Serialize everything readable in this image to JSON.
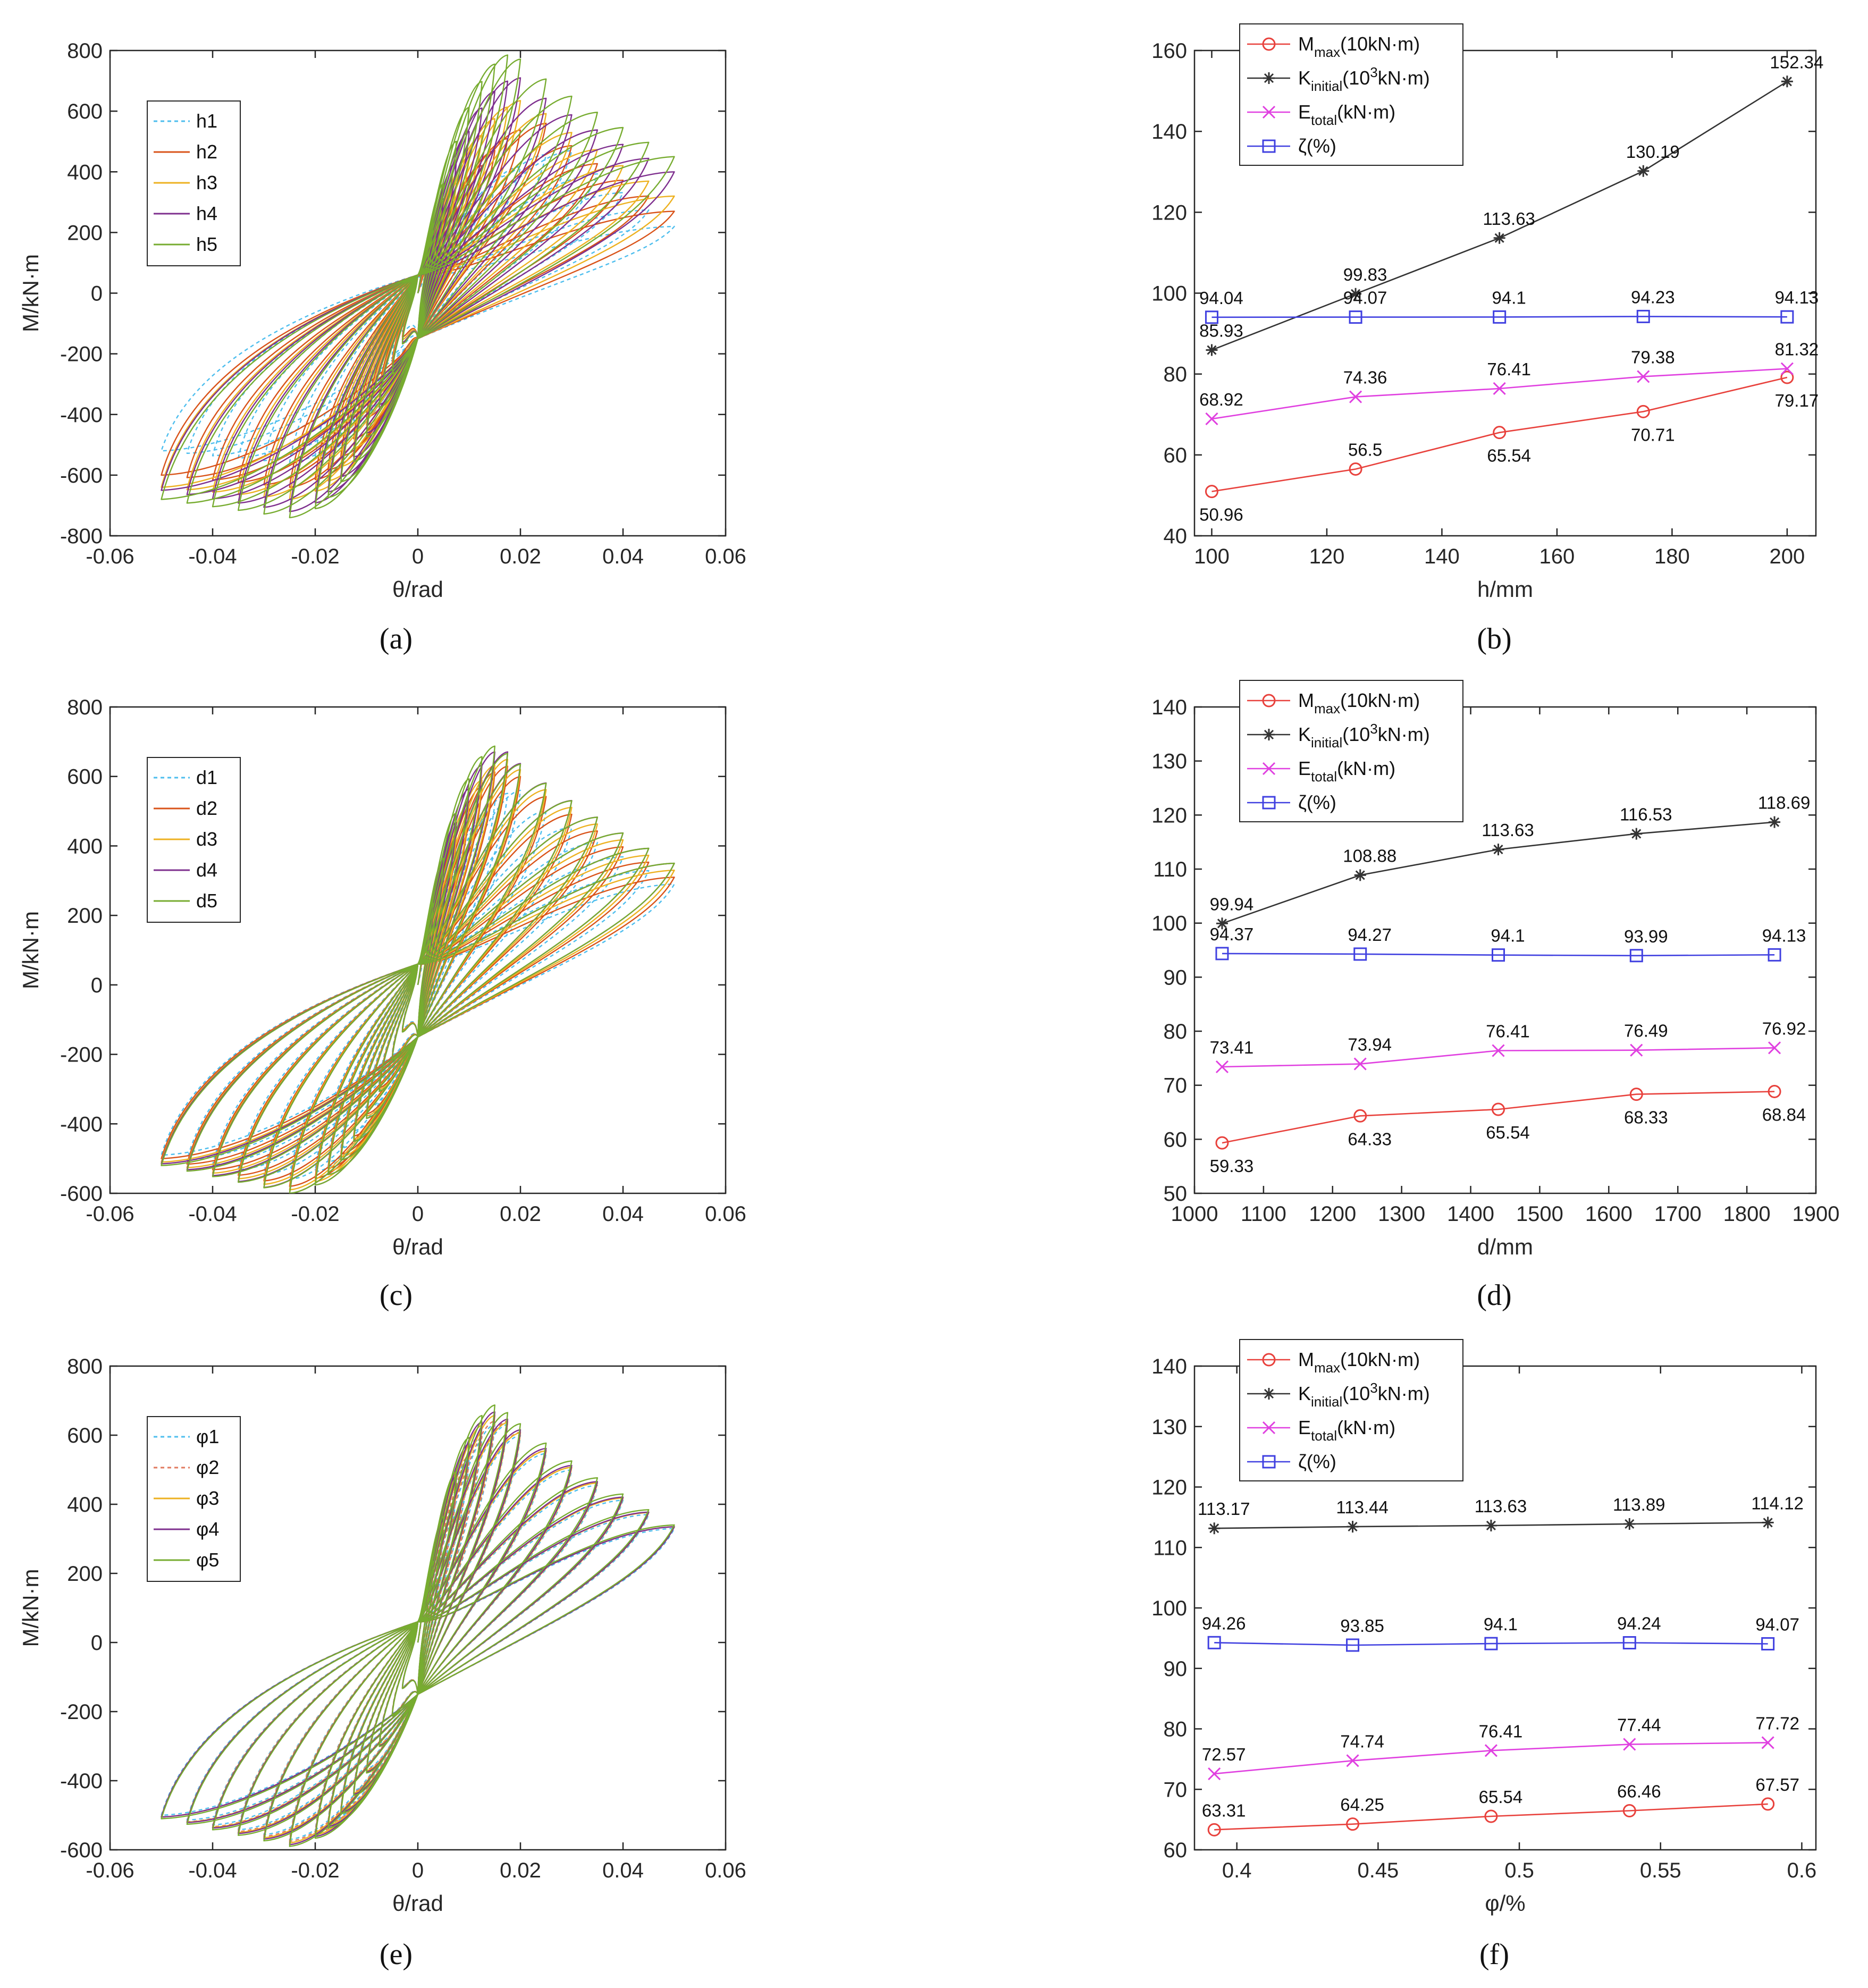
{
  "chart_data": [
    {
      "id": "a",
      "type": "line",
      "caption": "(a)",
      "caption_letter": "a",
      "xlabel": "θ/rad",
      "ylabel": "M/kN·m",
      "xlim": [
        -0.06,
        0.06
      ],
      "ylim": [
        -800,
        800
      ],
      "xticks": [
        "-0.06",
        "-0.04",
        "-0.02",
        "0",
        "0.02",
        "0.04",
        "0.06"
      ],
      "yticks": [
        "800",
        "600",
        "400",
        "200",
        "0",
        "-200",
        "-400",
        "-600",
        "-800"
      ],
      "legend_position": "top-left",
      "series": [
        {
          "name": "h1",
          "color": "#4dbeee",
          "dash": true,
          "peak_pos": 470,
          "peak_theta": 0.03,
          "peak_neg": -560,
          "end_pos": 220,
          "end_neg": -520
        },
        {
          "name": "h2",
          "color": "#d95319",
          "dash": false,
          "peak_pos": 560,
          "peak_theta": 0.025,
          "peak_neg": -640,
          "end_pos": 270,
          "end_neg": -600
        },
        {
          "name": "h3",
          "color": "#edb120",
          "dash": false,
          "peak_pos": 640,
          "peak_theta": 0.022,
          "peak_neg": -680,
          "end_pos": 320,
          "end_neg": -640
        },
        {
          "name": "h4",
          "color": "#7e2f8e",
          "dash": false,
          "peak_pos": 710,
          "peak_theta": 0.02,
          "peak_neg": -720,
          "end_pos": 400,
          "end_neg": -650
        },
        {
          "name": "h5",
          "color": "#77ac30",
          "dash": false,
          "peak_pos": 790,
          "peak_theta": 0.019,
          "peak_neg": -740,
          "end_pos": 450,
          "end_neg": -680
        }
      ]
    },
    {
      "id": "b",
      "type": "line",
      "caption": "(b)",
      "caption_letter": "b",
      "xlabel": "h/mm",
      "ylabel": "",
      "xlim": [
        97,
        205
      ],
      "ylim": [
        40,
        160
      ],
      "xticks": [
        100,
        120,
        140,
        160,
        180,
        200
      ],
      "yticks": [
        40,
        60,
        80,
        100,
        120,
        140,
        160
      ],
      "legend_position": "top-left",
      "x": [
        100,
        125,
        150,
        175,
        200
      ],
      "series": [
        {
          "name": "M_max(10kN·m)",
          "color": "#e8413c",
          "marker": "circle",
          "values": [
            50.96,
            56.5,
            65.54,
            70.71,
            79.17
          ],
          "labels": [
            "50.96",
            "56.5",
            "65.54",
            "70.71",
            "79.17"
          ],
          "label_pos": [
            "below",
            "above",
            "below",
            "below",
            "below"
          ]
        },
        {
          "name": "K_initial(10^3kN·m)",
          "color": "#333333",
          "marker": "star",
          "values": [
            85.93,
            99.83,
            113.63,
            130.19,
            152.34
          ],
          "labels": [
            "85.93",
            "99.83",
            "113.63",
            "130.19",
            "152.34"
          ],
          "label_pos": [
            "above",
            "above",
            "above",
            "above",
            "above"
          ]
        },
        {
          "name": "E_total(kN·m)",
          "color": "#e040e0",
          "marker": "x",
          "values": [
            68.92,
            74.36,
            76.41,
            79.38,
            81.32
          ],
          "labels": [
            "68.92",
            "74.36",
            "76.41",
            "79.38",
            "81.32"
          ],
          "label_pos": [
            "above",
            "above",
            "above",
            "above",
            "above"
          ]
        },
        {
          "name": "ζ(%)",
          "color": "#4040e0",
          "marker": "square",
          "values": [
            94.04,
            94.07,
            94.1,
            94.23,
            94.13
          ],
          "labels": [
            "94.04",
            "94.07",
            "94.1",
            "94.23",
            "94.13"
          ],
          "label_pos": [
            "above",
            "above",
            "above",
            "above",
            "above"
          ]
        }
      ]
    },
    {
      "id": "c",
      "type": "line",
      "caption": "(c)",
      "caption_letter": "c",
      "xlabel": "θ/rad",
      "ylabel": "M/kN·m",
      "xlim": [
        -0.06,
        0.06
      ],
      "ylim": [
        -600,
        800
      ],
      "xticks": [
        "-0.06",
        "-0.04",
        "-0.02",
        "0",
        "0.02",
        "0.04",
        "0.06"
      ],
      "yticks": [
        "800",
        "600",
        "400",
        "200",
        "0",
        "-200",
        "-400",
        "-600"
      ],
      "legend_position": "top-left",
      "series": [
        {
          "name": "d1",
          "color": "#4dbeee",
          "dash": true,
          "peak_pos": 560,
          "peak_theta": 0.02,
          "peak_neg": -560,
          "end_pos": 290,
          "end_neg": -490
        },
        {
          "name": "d2",
          "color": "#d95319",
          "dash": false,
          "peak_pos": 630,
          "peak_theta": 0.018,
          "peak_neg": -580,
          "end_pos": 310,
          "end_neg": -500
        },
        {
          "name": "d3",
          "color": "#edb120",
          "dash": false,
          "peak_pos": 650,
          "peak_theta": 0.018,
          "peak_neg": -590,
          "end_pos": 330,
          "end_neg": -510
        },
        {
          "name": "d4",
          "color": "#7e2f8e",
          "dash": false,
          "peak_pos": 680,
          "peak_theta": 0.017,
          "peak_neg": -600,
          "end_pos": 350,
          "end_neg": -515
        },
        {
          "name": "d5",
          "color": "#77ac30",
          "dash": false,
          "peak_pos": 690,
          "peak_theta": 0.016,
          "peak_neg": -600,
          "end_pos": 350,
          "end_neg": -520
        }
      ]
    },
    {
      "id": "d",
      "type": "line",
      "caption": "(d)",
      "caption_letter": "d",
      "xlabel": "d/mm",
      "ylabel": "",
      "xlim": [
        1000,
        1900
      ],
      "ylim": [
        50,
        140
      ],
      "xticks": [
        1000,
        1100,
        1200,
        1300,
        1400,
        1500,
        1600,
        1700,
        1800,
        1900
      ],
      "yticks": [
        50,
        60,
        70,
        80,
        90,
        100,
        110,
        120,
        130,
        140
      ],
      "legend_position": "top-left",
      "x": [
        1040,
        1240,
        1440,
        1640,
        1840
      ],
      "series": [
        {
          "name": "M_max(10kN·m)",
          "color": "#e8413c",
          "marker": "circle",
          "values": [
            59.33,
            64.33,
            65.54,
            68.33,
            68.84
          ],
          "labels": [
            "59.33",
            "64.33",
            "65.54",
            "68.33",
            "68.84"
          ],
          "label_pos": [
            "below",
            "below",
            "below",
            "below",
            "below"
          ]
        },
        {
          "name": "K_initial(10^3kN·m)",
          "color": "#333333",
          "marker": "star",
          "values": [
            99.94,
            108.88,
            113.63,
            116.53,
            118.69
          ],
          "labels": [
            "99.94",
            "108.88",
            "113.63",
            "116.53",
            "118.69"
          ],
          "label_pos": [
            "above",
            "above",
            "above",
            "above",
            "above"
          ]
        },
        {
          "name": "E_total(kN·m)",
          "color": "#e040e0",
          "marker": "x",
          "values": [
            73.41,
            73.94,
            76.41,
            76.49,
            76.92
          ],
          "labels": [
            "73.41",
            "73.94",
            "76.41",
            "76.49",
            "76.92"
          ],
          "label_pos": [
            "above",
            "above",
            "above",
            "above",
            "above"
          ]
        },
        {
          "name": "ζ(%)",
          "color": "#4040e0",
          "marker": "square",
          "values": [
            94.37,
            94.27,
            94.1,
            93.99,
            94.13
          ],
          "labels": [
            "94.37",
            "94.27",
            "94.1",
            "93.99",
            "94.13"
          ],
          "label_pos": [
            "above",
            "above",
            "above",
            "above",
            "above"
          ]
        }
      ]
    },
    {
      "id": "e",
      "type": "line",
      "caption": "(e)",
      "caption_letter": "e",
      "xlabel": "θ/rad",
      "ylabel": "M/kN·m",
      "xlim": [
        -0.06,
        0.06
      ],
      "ylim": [
        -600,
        800
      ],
      "xticks": [
        "-0.06",
        "-0.04",
        "-0.02",
        "0",
        "0.02",
        "0.04",
        "0.06"
      ],
      "yticks": [
        "800",
        "600",
        "400",
        "200",
        "0",
        "-200",
        "-400",
        "-600"
      ],
      "legend_position": "top-left",
      "series": [
        {
          "name": "φ1",
          "color": "#4dbeee",
          "dash": true,
          "peak_pos": 640,
          "peak_theta": 0.017,
          "peak_neg": -570,
          "end_pos": 330,
          "end_neg": -500
        },
        {
          "name": "φ2",
          "color": "#e07a5f",
          "dash": true,
          "peak_pos": 650,
          "peak_theta": 0.017,
          "peak_neg": -575,
          "end_pos": 335,
          "end_neg": -505
        },
        {
          "name": "φ3",
          "color": "#edb120",
          "dash": false,
          "peak_pos": 660,
          "peak_theta": 0.016,
          "peak_neg": -580,
          "end_pos": 335,
          "end_neg": -505
        },
        {
          "name": "φ4",
          "color": "#7e2f8e",
          "dash": false,
          "peak_pos": 670,
          "peak_theta": 0.016,
          "peak_neg": -585,
          "end_pos": 335,
          "end_neg": -505
        },
        {
          "name": "φ5",
          "color": "#77ac30",
          "dash": false,
          "peak_pos": 690,
          "peak_theta": 0.016,
          "peak_neg": -590,
          "end_pos": 340,
          "end_neg": -510
        }
      ]
    },
    {
      "id": "f",
      "type": "line",
      "caption": "(f)",
      "caption_letter": "f",
      "xlabel": "φ/%",
      "ylabel": "",
      "xlim": [
        0.385,
        0.605
      ],
      "ylim": [
        60,
        140
      ],
      "xticks": [
        "0.4",
        "0.45",
        "0.5",
        "0.55",
        "0.6"
      ],
      "xtick_values": [
        0.4,
        0.45,
        0.5,
        0.55,
        0.6
      ],
      "yticks": [
        60,
        70,
        80,
        90,
        100,
        110,
        120,
        130,
        140
      ],
      "legend_position": "top-left",
      "x": [
        0.392,
        0.441,
        0.49,
        0.539,
        0.588
      ],
      "series": [
        {
          "name": "M_max(10kN·m)",
          "color": "#e8413c",
          "marker": "circle",
          "values": [
            63.31,
            64.25,
            65.54,
            66.46,
            67.57
          ],
          "labels": [
            "63.31",
            "64.25",
            "65.54",
            "66.46",
            "67.57"
          ],
          "label_pos": [
            "above",
            "above",
            "above",
            "above",
            "above"
          ]
        },
        {
          "name": "K_initial(10^3kN·m)",
          "color": "#333333",
          "marker": "star",
          "values": [
            113.17,
            113.44,
            113.63,
            113.89,
            114.12
          ],
          "labels": [
            "113.17",
            "113.44",
            "113.63",
            "113.89",
            "114.12"
          ],
          "label_pos": [
            "above",
            "above",
            "above",
            "above",
            "above"
          ]
        },
        {
          "name": "E_total(kN·m)",
          "color": "#e040e0",
          "marker": "x",
          "values": [
            72.57,
            74.74,
            76.41,
            77.44,
            77.72
          ],
          "labels": [
            "72.57",
            "74.74",
            "76.41",
            "77.44",
            "77.72"
          ],
          "label_pos": [
            "above",
            "above",
            "above",
            "above",
            "above"
          ]
        },
        {
          "name": "ζ(%)",
          "color": "#4040e0",
          "marker": "square",
          "values": [
            94.26,
            93.85,
            94.1,
            94.24,
            94.07
          ],
          "labels": [
            "94.26",
            "93.85",
            "94.1",
            "94.24",
            "94.07"
          ],
          "label_pos": [
            "above",
            "above",
            "above",
            "above",
            "above"
          ]
        }
      ]
    }
  ]
}
